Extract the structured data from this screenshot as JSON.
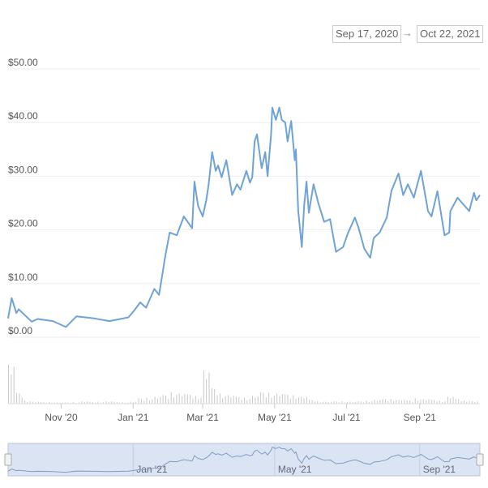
{
  "range_selector": {
    "from": "Sep 17, 2020",
    "arrow": "→",
    "to": "Oct 22, 2021"
  },
  "colors": {
    "line": "#6fa3d6",
    "volume": "#c8c8c8",
    "navigator_fill": "#dbe4f3",
    "grid": "#eeeeee"
  },
  "chart_data": {
    "type": "line",
    "title": "",
    "xlabel": "",
    "ylabel": "",
    "x_range": [
      "2020-09-17",
      "2021-10-22"
    ],
    "ylim": [
      0,
      50
    ],
    "grid": true,
    "y_ticks": [
      "$0.00",
      "$10.00",
      "$20.00",
      "$30.00",
      "$40.00",
      "$50.00"
    ],
    "x_ticks": [
      {
        "date": "2020-11-01",
        "label": "Nov '20"
      },
      {
        "date": "2021-01-01",
        "label": "Jan '21"
      },
      {
        "date": "2021-03-01",
        "label": "Mar '21"
      },
      {
        "date": "2021-05-01",
        "label": "May '21"
      },
      {
        "date": "2021-07-01",
        "label": "Jul '21"
      },
      {
        "date": "2021-09-01",
        "label": "Sep '21"
      }
    ],
    "navigator_ticks": [
      {
        "date": "2021-01-01",
        "label": "Jan '21"
      },
      {
        "date": "2021-05-01",
        "label": "May '21"
      },
      {
        "date": "2021-09-01",
        "label": "Sep '21"
      }
    ],
    "price": [
      [
        "2020-09-17",
        3.5
      ],
      [
        "2020-09-20",
        7.3
      ],
      [
        "2020-09-24",
        4.5
      ],
      [
        "2020-09-26",
        5.2
      ],
      [
        "2020-10-07",
        2.9
      ],
      [
        "2020-10-12",
        3.4
      ],
      [
        "2020-10-25",
        3.0
      ],
      [
        "2020-11-05",
        1.9
      ],
      [
        "2020-11-14",
        3.9
      ],
      [
        "2020-11-29",
        3.5
      ],
      [
        "2020-12-12",
        3.0
      ],
      [
        "2020-12-28",
        3.7
      ],
      [
        "2021-01-02",
        5.0
      ],
      [
        "2021-01-07",
        6.5
      ],
      [
        "2021-01-12",
        5.5
      ],
      [
        "2021-01-19",
        9.0
      ],
      [
        "2021-01-23",
        7.9
      ],
      [
        "2021-01-26",
        12.0
      ],
      [
        "2021-01-28",
        14.8
      ],
      [
        "2021-02-01",
        19.5
      ],
      [
        "2021-02-07",
        19.0
      ],
      [
        "2021-02-13",
        22.5
      ],
      [
        "2021-02-20",
        20.3
      ],
      [
        "2021-02-22",
        29.0
      ],
      [
        "2021-02-25",
        24.5
      ],
      [
        "2021-03-01",
        22.5
      ],
      [
        "2021-03-04",
        25.5
      ],
      [
        "2021-03-06",
        28.5
      ],
      [
        "2021-03-09",
        34.5
      ],
      [
        "2021-03-12",
        31.0
      ],
      [
        "2021-03-14",
        32.0
      ],
      [
        "2021-03-17",
        29.8
      ],
      [
        "2021-03-21",
        33.0
      ],
      [
        "2021-03-26",
        26.5
      ],
      [
        "2021-03-30",
        28.5
      ],
      [
        "2021-04-02",
        27.5
      ],
      [
        "2021-04-07",
        31.0
      ],
      [
        "2021-04-10",
        28.8
      ],
      [
        "2021-04-12",
        29.8
      ],
      [
        "2021-04-14",
        36.5
      ],
      [
        "2021-04-16",
        37.8
      ],
      [
        "2021-04-20",
        31.5
      ],
      [
        "2021-04-23",
        34.5
      ],
      [
        "2021-04-25",
        30.0
      ],
      [
        "2021-04-28",
        38.0
      ],
      [
        "2021-04-29",
        42.8
      ],
      [
        "2021-05-02",
        40.5
      ],
      [
        "2021-05-05",
        42.8
      ],
      [
        "2021-05-07",
        40.5
      ],
      [
        "2021-05-10",
        40.0
      ],
      [
        "2021-05-12",
        36.5
      ],
      [
        "2021-05-15",
        40.3
      ],
      [
        "2021-05-18",
        33.0
      ],
      [
        "2021-05-19",
        35.0
      ],
      [
        "2021-05-21",
        23.5
      ],
      [
        "2021-05-24",
        16.8
      ],
      [
        "2021-05-26",
        24.5
      ],
      [
        "2021-05-28",
        29.0
      ],
      [
        "2021-05-30",
        23.2
      ],
      [
        "2021-06-03",
        28.5
      ],
      [
        "2021-06-07",
        25.0
      ],
      [
        "2021-06-12",
        21.5
      ],
      [
        "2021-06-17",
        22.0
      ],
      [
        "2021-06-22",
        15.9
      ],
      [
        "2021-06-28",
        16.8
      ],
      [
        "2021-07-02",
        19.3
      ],
      [
        "2021-07-08",
        22.3
      ],
      [
        "2021-07-11",
        20.5
      ],
      [
        "2021-07-16",
        16.5
      ],
      [
        "2021-07-21",
        14.8
      ],
      [
        "2021-07-24",
        18.5
      ],
      [
        "2021-07-29",
        19.5
      ],
      [
        "2021-08-04",
        22.3
      ],
      [
        "2021-08-08",
        27.3
      ],
      [
        "2021-08-14",
        30.5
      ],
      [
        "2021-08-18",
        26.5
      ],
      [
        "2021-08-22",
        28.5
      ],
      [
        "2021-08-27",
        26.0
      ],
      [
        "2021-09-02",
        31.0
      ],
      [
        "2021-09-08",
        23.5
      ],
      [
        "2021-09-11",
        22.5
      ],
      [
        "2021-09-16",
        27.2
      ],
      [
        "2021-09-22",
        19.0
      ],
      [
        "2021-09-26",
        19.5
      ],
      [
        "2021-09-27",
        23.5
      ],
      [
        "2021-10-03",
        26.0
      ],
      [
        "2021-10-13",
        23.5
      ],
      [
        "2021-10-17",
        26.9
      ],
      [
        "2021-10-19",
        25.5
      ],
      [
        "2021-10-22",
        26.5
      ]
    ],
    "volume_relative": [
      100,
      28,
      8,
      5,
      4,
      4,
      3,
      3,
      4,
      6,
      5,
      5,
      6,
      5,
      4,
      5,
      14,
      15,
      18,
      22,
      30,
      26,
      24,
      20,
      85,
      40,
      26,
      22,
      18,
      16,
      20,
      30,
      28,
      26,
      24,
      22,
      18,
      10,
      6,
      5,
      6,
      6,
      5,
      6,
      8,
      10,
      12,
      12,
      10,
      8,
      14,
      12,
      10,
      8,
      18,
      12,
      8,
      6
    ]
  }
}
